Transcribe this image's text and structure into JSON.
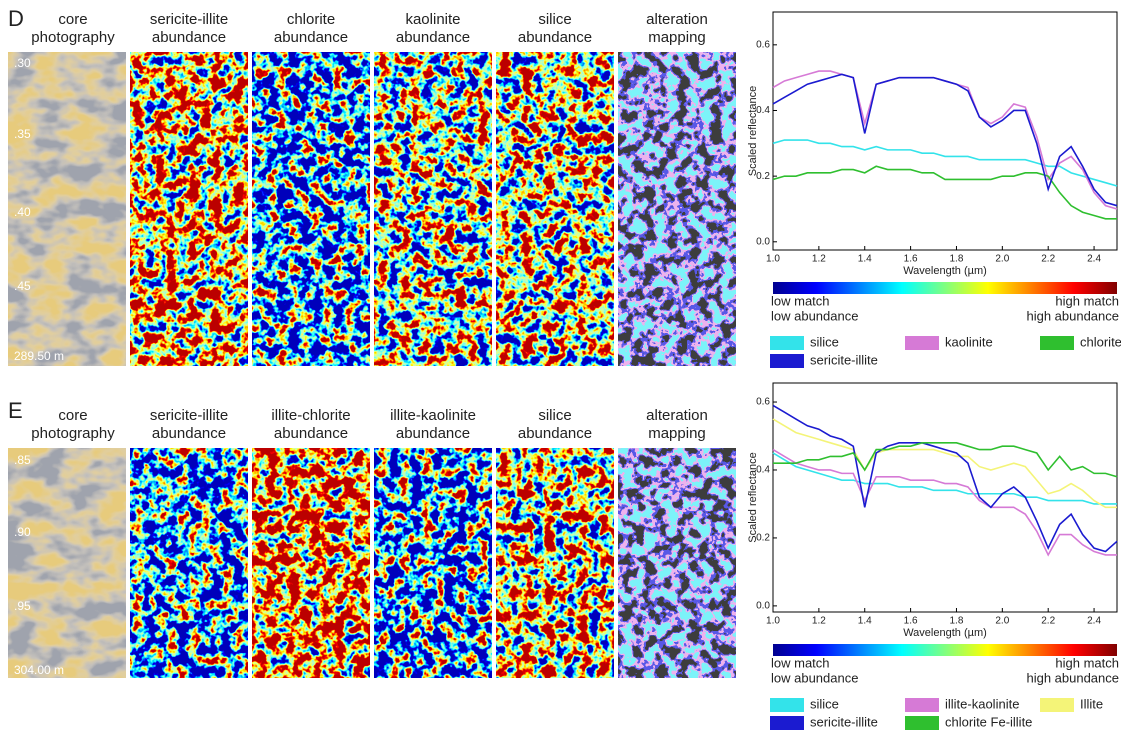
{
  "panels": [
    {
      "letter": "D",
      "columns": [
        [
          "core",
          "photography"
        ],
        [
          "sericite-illite",
          "abundance"
        ],
        [
          "chlorite",
          "abundance"
        ],
        [
          "kaolinite",
          "abundance"
        ],
        [
          "silice",
          "abundance"
        ],
        [
          "alteration",
          "mapping"
        ]
      ],
      "depths": [
        ".30",
        ".35",
        ".40",
        ".45",
        "289.50 m"
      ],
      "colorbar_labels": {
        "low": [
          "low match",
          "low abundance"
        ],
        "high": [
          "high match",
          "high abundance"
        ]
      }
    },
    {
      "letter": "E",
      "columns": [
        [
          "core",
          "photography"
        ],
        [
          "sericite-illite",
          "abundance"
        ],
        [
          "illite-chlorite",
          "abundance"
        ],
        [
          "illite-kaolinite",
          "abundance"
        ],
        [
          "silice",
          "abundance"
        ],
        [
          "alteration",
          "mapping"
        ]
      ],
      "depths": [
        ".85",
        ".90",
        ".95",
        "304.00 m"
      ],
      "colorbar_labels": {
        "low": [
          "low match",
          "low abundance"
        ],
        "high": [
          "high match",
          "high abundance"
        ]
      }
    }
  ],
  "chart_data": [
    {
      "type": "line",
      "y_label": "Scaled reflectance",
      "x_label": "Wavelength (µm)",
      "x": [
        1.0,
        1.05,
        1.1,
        1.15,
        1.2,
        1.25,
        1.3,
        1.35,
        1.4,
        1.45,
        1.5,
        1.55,
        1.6,
        1.65,
        1.7,
        1.75,
        1.8,
        1.85,
        1.9,
        1.95,
        2.0,
        2.05,
        2.1,
        2.15,
        2.2,
        2.25,
        2.3,
        2.35,
        2.4,
        2.45,
        2.5
      ],
      "xlim": [
        1.0,
        2.5
      ],
      "xticks": [
        {
          "value": 1,
          "label": "1.0"
        },
        1.2,
        1.4,
        1.6,
        1.8,
        {
          "value": 2,
          "label": "2.0"
        },
        2.2,
        2.4
      ],
      "ylim": [
        -0.025,
        0.7
      ],
      "yticks": [
        {
          "value": 0,
          "label": "0.0"
        },
        0.2,
        0.4,
        0.6
      ],
      "series": [
        {
          "name": "silice",
          "color": "#33e3ea",
          "values": [
            0.3,
            0.31,
            0.31,
            0.31,
            0.3,
            0.3,
            0.29,
            0.29,
            0.28,
            0.29,
            0.28,
            0.28,
            0.28,
            0.27,
            0.27,
            0.26,
            0.26,
            0.26,
            0.25,
            0.25,
            0.25,
            0.25,
            0.25,
            0.24,
            0.23,
            0.23,
            0.21,
            0.2,
            0.19,
            0.18,
            0.17
          ]
        },
        {
          "name": "kaolinite",
          "color": "#d67ad6",
          "values": [
            0.47,
            0.49,
            0.5,
            0.51,
            0.52,
            0.52,
            0.51,
            0.5,
            0.36,
            0.48,
            0.49,
            0.5,
            0.5,
            0.5,
            0.5,
            0.49,
            0.48,
            0.47,
            0.38,
            0.36,
            0.38,
            0.42,
            0.41,
            0.32,
            0.19,
            0.24,
            0.26,
            0.22,
            0.15,
            0.11,
            0.1
          ]
        },
        {
          "name": "chlorite",
          "color": "#2fbf2f",
          "values": [
            0.19,
            0.2,
            0.2,
            0.21,
            0.21,
            0.21,
            0.22,
            0.22,
            0.21,
            0.23,
            0.22,
            0.22,
            0.22,
            0.21,
            0.21,
            0.19,
            0.19,
            0.19,
            0.19,
            0.19,
            0.2,
            0.2,
            0.21,
            0.21,
            0.2,
            0.15,
            0.11,
            0.09,
            0.08,
            0.07,
            0.07
          ]
        },
        {
          "name": "sericite-illite",
          "color": "#1b1bd0",
          "values": [
            0.42,
            0.44,
            0.46,
            0.48,
            0.49,
            0.5,
            0.51,
            0.5,
            0.33,
            0.48,
            0.49,
            0.5,
            0.5,
            0.5,
            0.5,
            0.49,
            0.48,
            0.46,
            0.38,
            0.35,
            0.37,
            0.4,
            0.4,
            0.3,
            0.16,
            0.26,
            0.29,
            0.23,
            0.16,
            0.12,
            0.11
          ]
        }
      ]
    },
    {
      "type": "line",
      "y_label": "Scaled reflectance",
      "x_label": "Wavelength (µm)",
      "x": [
        1.0,
        1.05,
        1.1,
        1.15,
        1.2,
        1.25,
        1.3,
        1.35,
        1.4,
        1.45,
        1.5,
        1.55,
        1.6,
        1.65,
        1.7,
        1.75,
        1.8,
        1.85,
        1.9,
        1.95,
        2.0,
        2.05,
        2.1,
        2.15,
        2.2,
        2.25,
        2.3,
        2.35,
        2.4,
        2.45,
        2.5
      ],
      "xlim": [
        1.0,
        2.5
      ],
      "xticks": [
        {
          "value": 1,
          "label": "1.0"
        },
        1.2,
        1.4,
        1.6,
        1.8,
        {
          "value": 2,
          "label": "2.0"
        },
        2.2,
        2.4
      ],
      "ylim": [
        -0.018,
        0.656
      ],
      "yticks": [
        {
          "value": 0,
          "label": "0.0"
        },
        0.2,
        0.4,
        0.6
      ],
      "series": [
        {
          "name": "silice",
          "color": "#33e3ea",
          "values": [
            0.45,
            0.43,
            0.41,
            0.4,
            0.39,
            0.38,
            0.37,
            0.37,
            0.36,
            0.36,
            0.36,
            0.35,
            0.35,
            0.35,
            0.34,
            0.34,
            0.34,
            0.33,
            0.33,
            0.33,
            0.33,
            0.33,
            0.32,
            0.32,
            0.31,
            0.31,
            0.31,
            0.31,
            0.3,
            0.3,
            0.3
          ]
        },
        {
          "name": "illite-kaolinite",
          "color": "#d67ad6",
          "values": [
            0.46,
            0.44,
            0.42,
            0.41,
            0.4,
            0.4,
            0.39,
            0.39,
            0.31,
            0.38,
            0.38,
            0.38,
            0.37,
            0.37,
            0.37,
            0.36,
            0.36,
            0.35,
            0.31,
            0.29,
            0.29,
            0.29,
            0.27,
            0.22,
            0.15,
            0.21,
            0.21,
            0.18,
            0.16,
            0.15,
            0.15
          ]
        },
        {
          "name": "Illite",
          "color": "#f4f478",
          "values": [
            0.55,
            0.53,
            0.51,
            0.5,
            0.49,
            0.48,
            0.47,
            0.46,
            0.4,
            0.45,
            0.46,
            0.46,
            0.46,
            0.46,
            0.46,
            0.45,
            0.44,
            0.44,
            0.41,
            0.4,
            0.41,
            0.42,
            0.41,
            0.37,
            0.33,
            0.34,
            0.36,
            0.34,
            0.31,
            0.29,
            0.29
          ]
        },
        {
          "name": "sericite-illite",
          "color": "#1b1bd0",
          "values": [
            0.59,
            0.57,
            0.55,
            0.53,
            0.52,
            0.5,
            0.49,
            0.47,
            0.29,
            0.45,
            0.47,
            0.48,
            0.48,
            0.48,
            0.47,
            0.46,
            0.45,
            0.42,
            0.32,
            0.29,
            0.33,
            0.35,
            0.32,
            0.25,
            0.17,
            0.24,
            0.27,
            0.21,
            0.17,
            0.16,
            0.19
          ]
        },
        {
          "name": "chlorite Fe-illite",
          "color": "#2fbf2f",
          "values": [
            0.42,
            0.42,
            0.42,
            0.43,
            0.43,
            0.44,
            0.44,
            0.45,
            0.4,
            0.46,
            0.46,
            0.47,
            0.47,
            0.48,
            0.48,
            0.48,
            0.48,
            0.47,
            0.46,
            0.46,
            0.47,
            0.47,
            0.46,
            0.45,
            0.4,
            0.44,
            0.4,
            0.41,
            0.39,
            0.39,
            0.38
          ]
        }
      ]
    }
  ]
}
